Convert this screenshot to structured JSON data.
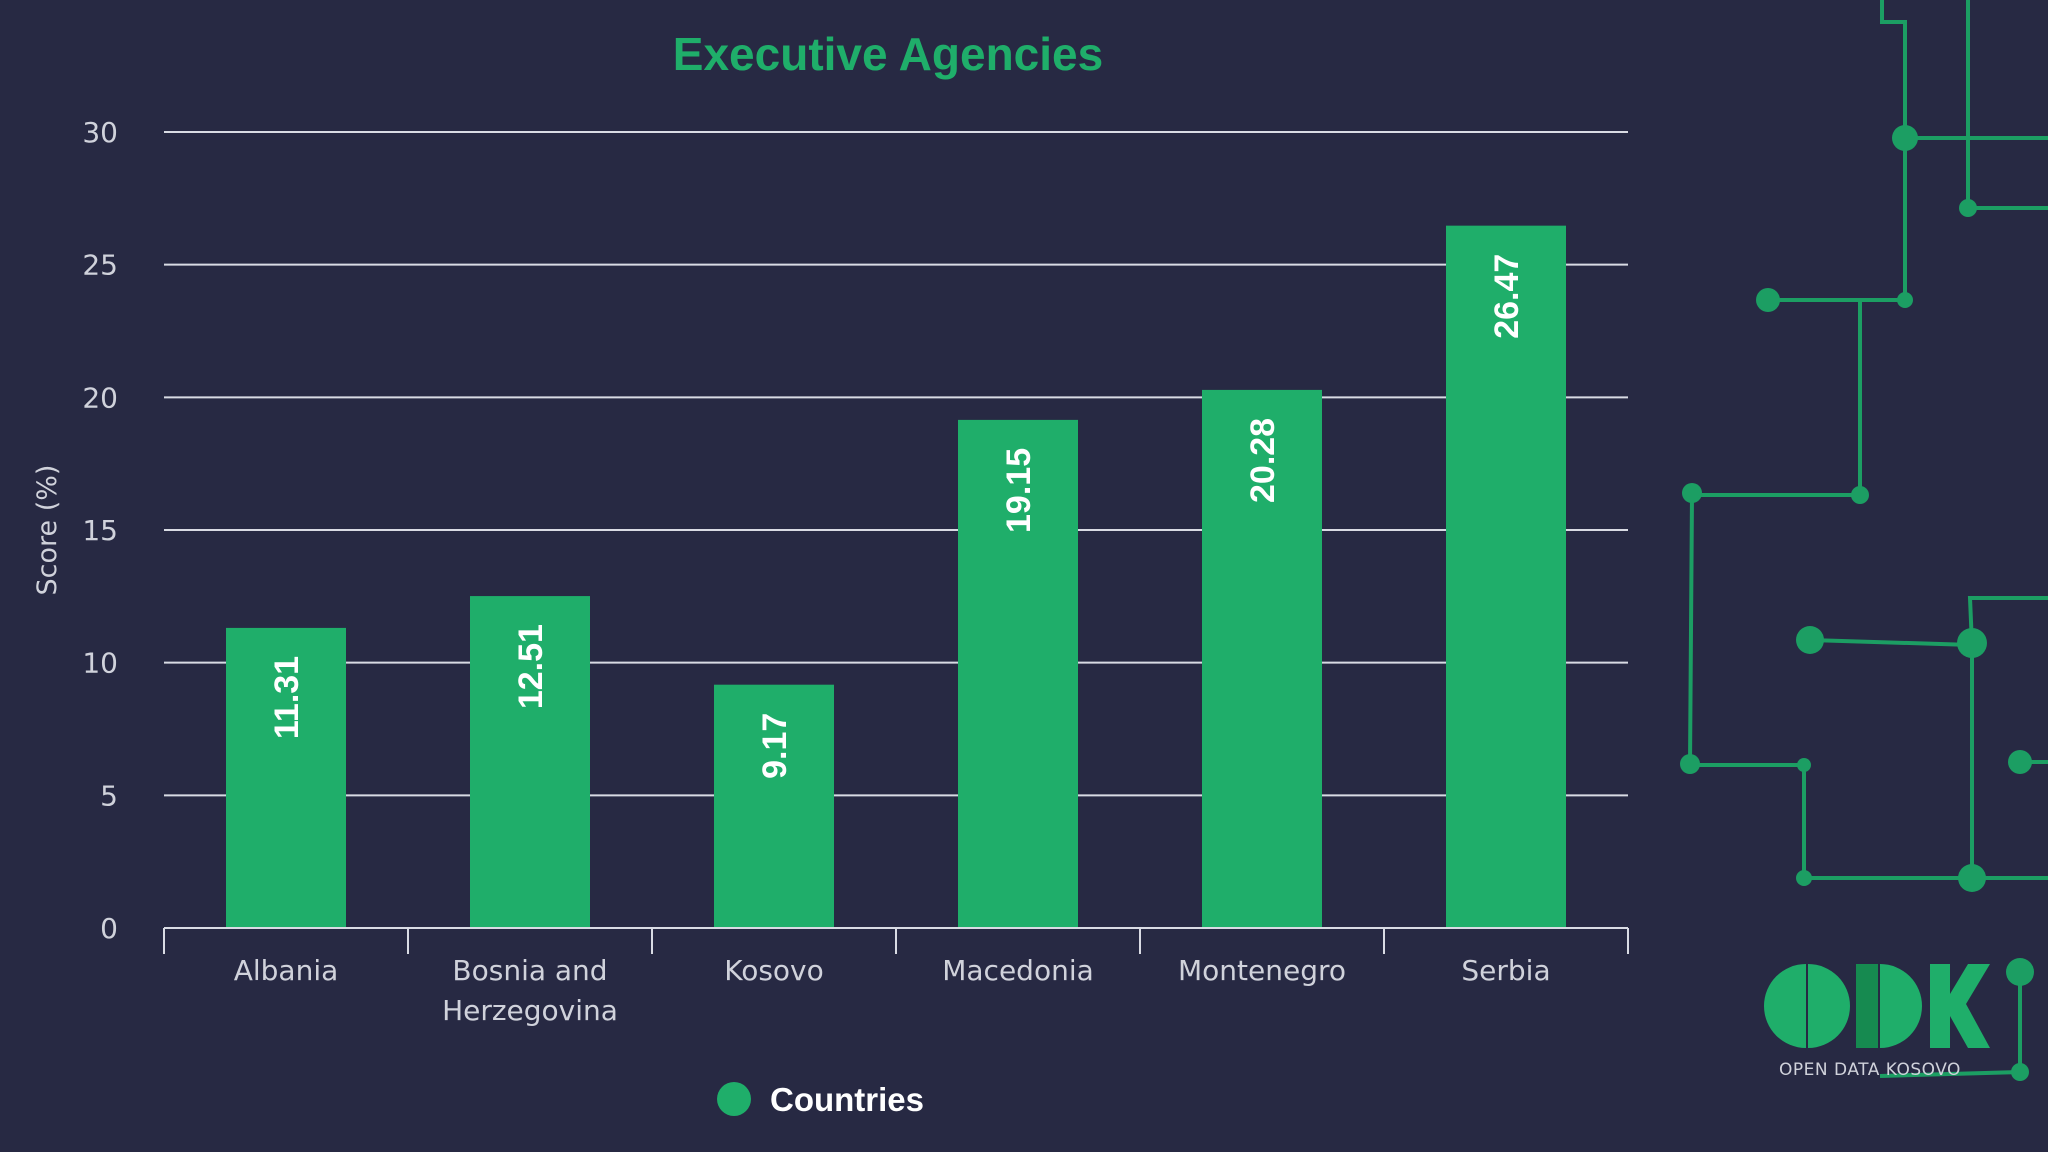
{
  "chart_data": {
    "type": "bar",
    "title": "Executive Agencies",
    "xlabel": "",
    "ylabel": "Score (%)",
    "ylim": [
      0,
      30
    ],
    "yticks": [
      0,
      5,
      10,
      15,
      20,
      25,
      30
    ],
    "grid": true,
    "categories": [
      "Albania",
      "Bosnia and Herzegovina",
      "Kosovo",
      "Macedonia",
      "Montenegro",
      "Serbia"
    ],
    "series": [
      {
        "name": "Countries",
        "values": [
          11.31,
          12.51,
          9.17,
          19.15,
          20.28,
          26.47
        ]
      }
    ],
    "value_labels": [
      "11.31",
      "12.51",
      "9.17",
      "19.15",
      "20.28",
      "26.47"
    ],
    "legend": {
      "position": "bottom",
      "label": "Countries"
    }
  },
  "branding": {
    "logo_letters": "ODK",
    "logo_caption": "OPEN DATA KOSOVO"
  },
  "colors": {
    "background": "#272943",
    "bar": "#1fae6a",
    "title": "#1fae6a",
    "grid": "#d9dbe4",
    "tick_text": "#d0d2db",
    "value_text": "#ffffff",
    "circuit": "#1c9e63",
    "logo_dark": "#168a50"
  }
}
